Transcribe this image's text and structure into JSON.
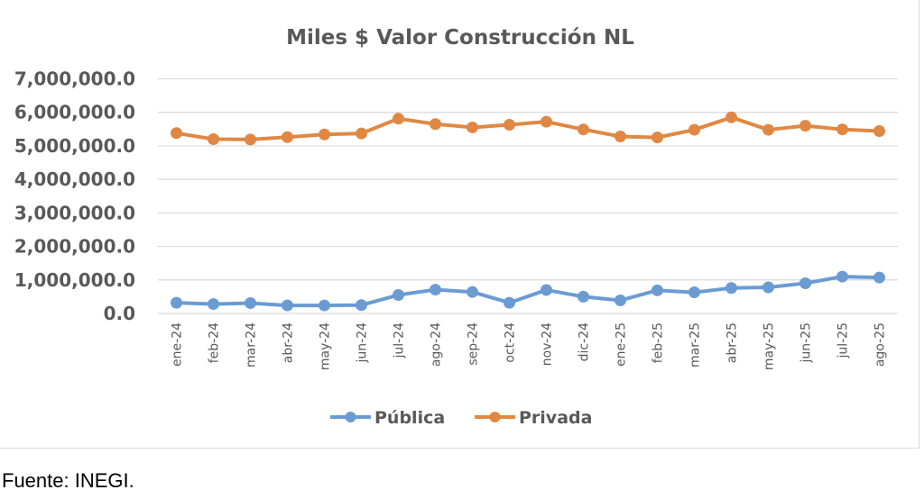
{
  "chart_data": {
    "type": "line",
    "title": "Miles $ Valor Construcción NL",
    "xlabel": "",
    "ylabel": "",
    "ylim": [
      0,
      7000000
    ],
    "yticks": [
      0,
      1000000,
      2000000,
      3000000,
      4000000,
      5000000,
      6000000,
      7000000
    ],
    "ytick_labels": [
      "0.0",
      "1,000,000.0",
      "2,000,000.0",
      "3,000,000.0",
      "4,000,000.0",
      "5,000,000.0",
      "6,000,000.0",
      "7,000,000.0"
    ],
    "grid": true,
    "legend_position": "bottom",
    "categories": [
      "ene-24",
      "feb-24",
      "mar-24",
      "abr-24",
      "may-24",
      "jun-24",
      "jul-24",
      "ago-24",
      "sep-24",
      "oct-24",
      "nov-24",
      "dic-24",
      "ene-25",
      "feb-25",
      "mar-25",
      "abr-25",
      "may-25",
      "jun-25",
      "jul-25",
      "ago-25"
    ],
    "series": [
      {
        "name": "Pública",
        "color": "#6a9bd3",
        "values": [
          320000,
          280000,
          310000,
          240000,
          240000,
          250000,
          550000,
          710000,
          640000,
          320000,
          700000,
          500000,
          390000,
          690000,
          630000,
          760000,
          780000,
          900000,
          1100000,
          1070000
        ]
      },
      {
        "name": "Privada",
        "color": "#e08843",
        "values": [
          5380000,
          5200000,
          5190000,
          5260000,
          5340000,
          5370000,
          5810000,
          5650000,
          5550000,
          5630000,
          5720000,
          5490000,
          5280000,
          5250000,
          5480000,
          5850000,
          5480000,
          5600000,
          5490000,
          5440000
        ]
      }
    ]
  },
  "footer": {
    "source": "Fuente: INEGI."
  }
}
